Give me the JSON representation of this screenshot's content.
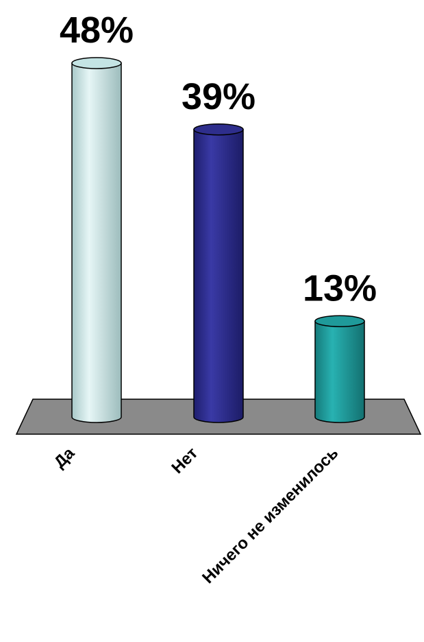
{
  "chart_data": {
    "type": "bar",
    "title": "",
    "xlabel": "",
    "ylabel": "",
    "categories": [
      "Да",
      "Нет",
      "Ничего не изменилось"
    ],
    "values": [
      48,
      39,
      13
    ],
    "value_labels": [
      "48%",
      "39%",
      "13%"
    ],
    "ylim": [
      0,
      48
    ],
    "grid": false,
    "legend": "none",
    "colors": {
      "bars": [
        "#c4e4e4",
        "#2e2e8c",
        "#1f9a9a"
      ],
      "floor": "#8a8a8a",
      "outline": "#000000"
    }
  }
}
